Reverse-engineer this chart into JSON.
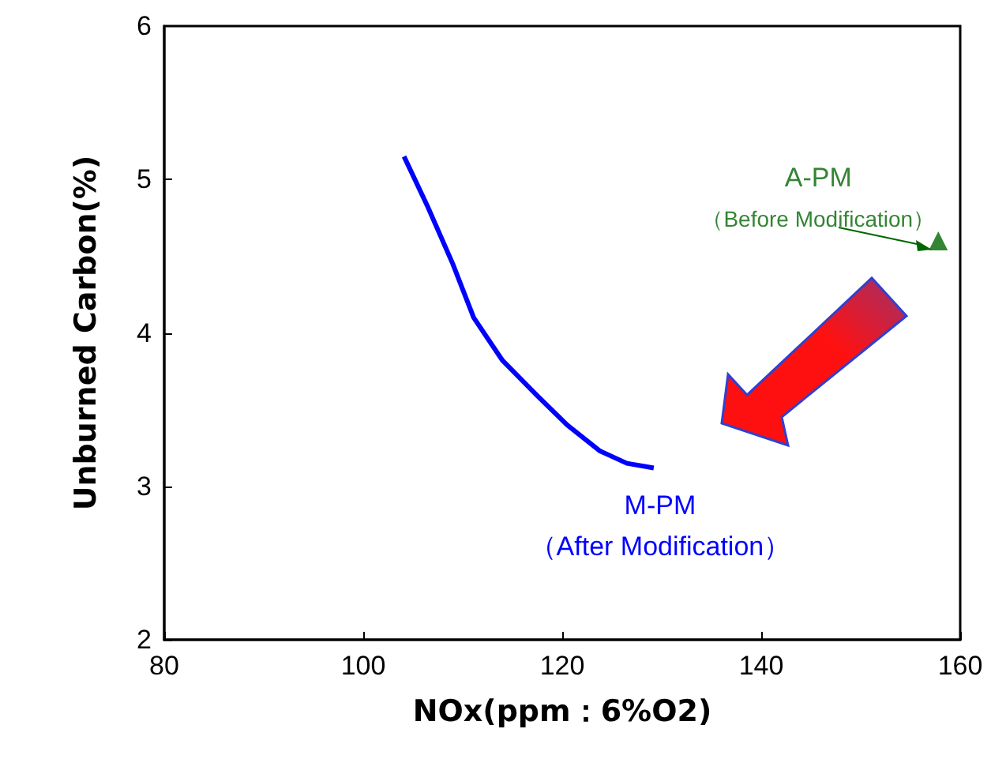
{
  "chart_data": {
    "type": "line",
    "xlabel": "NOx(ppm：6%O2)",
    "ylabel": "Unburned Carbon(%)",
    "xlim": [
      80,
      160
    ],
    "xticks": [
      80,
      100,
      120,
      140,
      160
    ],
    "ylim": [
      2,
      6
    ],
    "yticks": [
      2,
      3,
      4,
      5,
      6
    ],
    "grid": false,
    "legend": false,
    "series": [
      {
        "name": "M-PM",
        "color": "#0000ff",
        "x": [
          104.1,
          106.5,
          109,
          111.1,
          114,
          117.5,
          120.5,
          123.8,
          126.5,
          129.2
        ],
        "values": [
          5.15,
          4.82,
          4.45,
          4.1,
          3.82,
          3.59,
          3.4,
          3.23,
          3.15,
          3.12
        ],
        "marker": "none"
      },
      {
        "name": "A-PM",
        "type": "scatter",
        "color": "#006600",
        "x": [
          157.8
        ],
        "values": [
          4.6
        ],
        "marker": "triangle"
      }
    ],
    "annotations": [
      "（After Modification）",
      {
        "text": "（Before Modification）",
        "x": 157.8,
        "y": 4.6
      }
    ]
  }
}
